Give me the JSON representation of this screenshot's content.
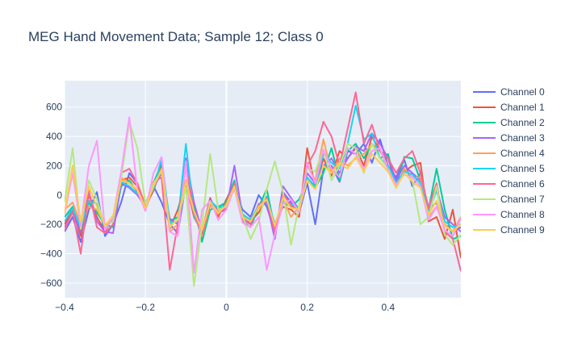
{
  "chart_data": {
    "type": "line",
    "title": "MEG Hand Movement Data; Sample 12; Class 0",
    "xlabel": "",
    "ylabel": "",
    "xlim": [
      -0.4,
      0.58
    ],
    "ylim": [
      -700,
      780
    ],
    "x_ticks": [
      -0.4,
      -0.2,
      0,
      0.2,
      0.4
    ],
    "x_tick_labels": [
      "−0.4",
      "−0.2",
      "0",
      "0.2",
      "0.4"
    ],
    "y_ticks": [
      -600,
      -400,
      -200,
      0,
      200,
      400,
      600
    ],
    "y_tick_labels": [
      "−600",
      "−400",
      "−200",
      "0",
      "200",
      "400",
      "600"
    ],
    "grid": true,
    "legend_position": "right",
    "x": [
      -0.4,
      -0.38,
      -0.36,
      -0.34,
      -0.32,
      -0.3,
      -0.28,
      -0.26,
      -0.24,
      -0.22,
      -0.2,
      -0.18,
      -0.16,
      -0.14,
      -0.12,
      -0.1,
      -0.08,
      -0.06,
      -0.04,
      -0.02,
      0,
      0.02,
      0.04,
      0.06,
      0.08,
      0.1,
      0.12,
      0.14,
      0.16,
      0.18,
      0.2,
      0.22,
      0.24,
      0.26,
      0.28,
      0.3,
      0.32,
      0.34,
      0.36,
      0.38,
      0.4,
      0.42,
      0.44,
      0.46,
      0.48,
      0.5,
      0.52,
      0.54,
      0.56,
      0.58
    ],
    "series": [
      {
        "name": "Channel 0",
        "color": "#636efa",
        "values": [
          -250,
          -150,
          -320,
          -100,
          20,
          -280,
          -200,
          -50,
          150,
          80,
          -100,
          60,
          -50,
          -200,
          -260,
          80,
          -100,
          -300,
          -50,
          -100,
          -80,
          50,
          -100,
          -150,
          0,
          -80,
          -250,
          20,
          -50,
          -120,
          80,
          -200,
          180,
          200,
          90,
          300,
          280,
          350,
          220,
          380,
          200,
          120,
          240,
          60,
          150,
          -100,
          -50,
          -200,
          -250,
          -220
        ]
      },
      {
        "name": "Channel 1",
        "color": "#ef553b",
        "values": [
          -200,
          -100,
          -280,
          0,
          -150,
          -250,
          -150,
          100,
          120,
          60,
          -80,
          30,
          200,
          -230,
          -100,
          100,
          -150,
          -250,
          -20,
          -150,
          -30,
          80,
          -160,
          -180,
          -120,
          -20,
          -200,
          -80,
          -100,
          -150,
          320,
          50,
          250,
          130,
          300,
          250,
          320,
          200,
          400,
          300,
          250,
          80,
          160,
          200,
          220,
          -180,
          -150,
          -300,
          -100,
          -430
        ]
      },
      {
        "name": "Channel 2",
        "color": "#00cc96",
        "values": [
          -150,
          -80,
          -250,
          -50,
          -120,
          -200,
          -220,
          60,
          100,
          20,
          -60,
          80,
          220,
          -180,
          -150,
          50,
          -80,
          -320,
          -100,
          -80,
          -50,
          100,
          -180,
          -220,
          -80,
          40,
          -230,
          -50,
          -80,
          -30,
          100,
          50,
          150,
          320,
          100,
          300,
          350,
          250,
          350,
          250,
          280,
          60,
          260,
          250,
          100,
          -100,
          180,
          -100,
          -300,
          -280
        ]
      },
      {
        "name": "Channel 3",
        "color": "#ab63fa",
        "values": [
          -220,
          -120,
          -250,
          20,
          -180,
          -250,
          -260,
          80,
          50,
          0,
          -80,
          50,
          150,
          -160,
          -200,
          250,
          -50,
          -250,
          -30,
          -120,
          -100,
          200,
          -140,
          -200,
          -60,
          -50,
          -300,
          60,
          -20,
          -100,
          150,
          80,
          200,
          250,
          150,
          250,
          330,
          300,
          420,
          350,
          250,
          100,
          200,
          150,
          100,
          -80,
          40,
          -150,
          -200,
          -250
        ]
      },
      {
        "name": "Channel 4",
        "color": "#ffa15a",
        "values": [
          -100,
          -50,
          -200,
          -80,
          -100,
          -200,
          -180,
          120,
          80,
          30,
          -100,
          70,
          180,
          -250,
          -200,
          100,
          -120,
          -280,
          -70,
          -130,
          -60,
          70,
          -150,
          -160,
          -90,
          -20,
          -220,
          -30,
          -150,
          -80,
          200,
          100,
          380,
          150,
          250,
          200,
          250,
          280,
          350,
          300,
          200,
          50,
          180,
          120,
          120,
          -150,
          -80,
          -200,
          -250,
          -150
        ]
      },
      {
        "name": "Channel 5",
        "color": "#19d3f3",
        "values": [
          -180,
          -90,
          -220,
          -40,
          -60,
          -230,
          -160,
          90,
          60,
          10,
          -50,
          40,
          250,
          -190,
          -180,
          350,
          -140,
          -260,
          -40,
          -90,
          -70,
          60,
          -130,
          -170,
          -70,
          -10,
          -200,
          -40,
          -60,
          -90,
          120,
          60,
          280,
          220,
          180,
          350,
          610,
          380,
          420,
          250,
          200,
          80,
          160,
          140,
          80,
          -120,
          30,
          -180,
          -220,
          -200
        ]
      },
      {
        "name": "Channel 6",
        "color": "#ff6692",
        "values": [
          -240,
          -110,
          -400,
          30,
          -220,
          -260,
          -200,
          150,
          180,
          80,
          -70,
          90,
          120,
          -510,
          -200,
          200,
          -120,
          -270,
          -60,
          -110,
          -90,
          80,
          -170,
          -200,
          -70,
          -20,
          -260,
          10,
          -70,
          -110,
          200,
          300,
          500,
          400,
          200,
          450,
          700,
          350,
          480,
          300,
          250,
          150,
          250,
          300,
          150,
          -90,
          80,
          -250,
          -300,
          -520
        ]
      },
      {
        "name": "Channel 7",
        "color": "#b6e880",
        "values": [
          -50,
          320,
          -230,
          100,
          -30,
          -220,
          -180,
          110,
          500,
          320,
          -60,
          80,
          160,
          -210,
          -170,
          50,
          -620,
          -200,
          280,
          -100,
          -80,
          40,
          -140,
          -300,
          -180,
          40,
          230,
          20,
          -340,
          -70,
          180,
          160,
          310,
          100,
          200,
          350,
          320,
          150,
          350,
          250,
          180,
          60,
          150,
          100,
          -200,
          -150,
          60,
          -270,
          -340,
          -270
        ]
      },
      {
        "name": "Channel 8",
        "color": "#ff97ff",
        "values": [
          -130,
          150,
          -210,
          200,
          370,
          -240,
          -150,
          160,
          530,
          30,
          -110,
          150,
          260,
          -250,
          -280,
          230,
          -530,
          -100,
          -40,
          -170,
          -100,
          50,
          -190,
          -220,
          -150,
          -510,
          -270,
          -60,
          -30,
          -120,
          220,
          80,
          310,
          180,
          120,
          320,
          280,
          180,
          300,
          320,
          170,
          70,
          140,
          120,
          60,
          -170,
          -80,
          -240,
          -280,
          -160
        ]
      },
      {
        "name": "Channel 9",
        "color": "#fecb52",
        "values": [
          -120,
          200,
          -180,
          60,
          -80,
          -210,
          -140,
          100,
          80,
          40,
          -90,
          60,
          170,
          -220,
          -160,
          90,
          -110,
          -240,
          -50,
          -120,
          -70,
          60,
          -150,
          -180,
          -80,
          -30,
          -210,
          -20,
          -90,
          -100,
          100,
          40,
          200,
          150,
          220,
          180,
          260,
          160,
          280,
          220,
          160,
          50,
          150,
          90,
          50,
          -130,
          -40,
          -210,
          -250,
          -200
        ]
      }
    ]
  }
}
